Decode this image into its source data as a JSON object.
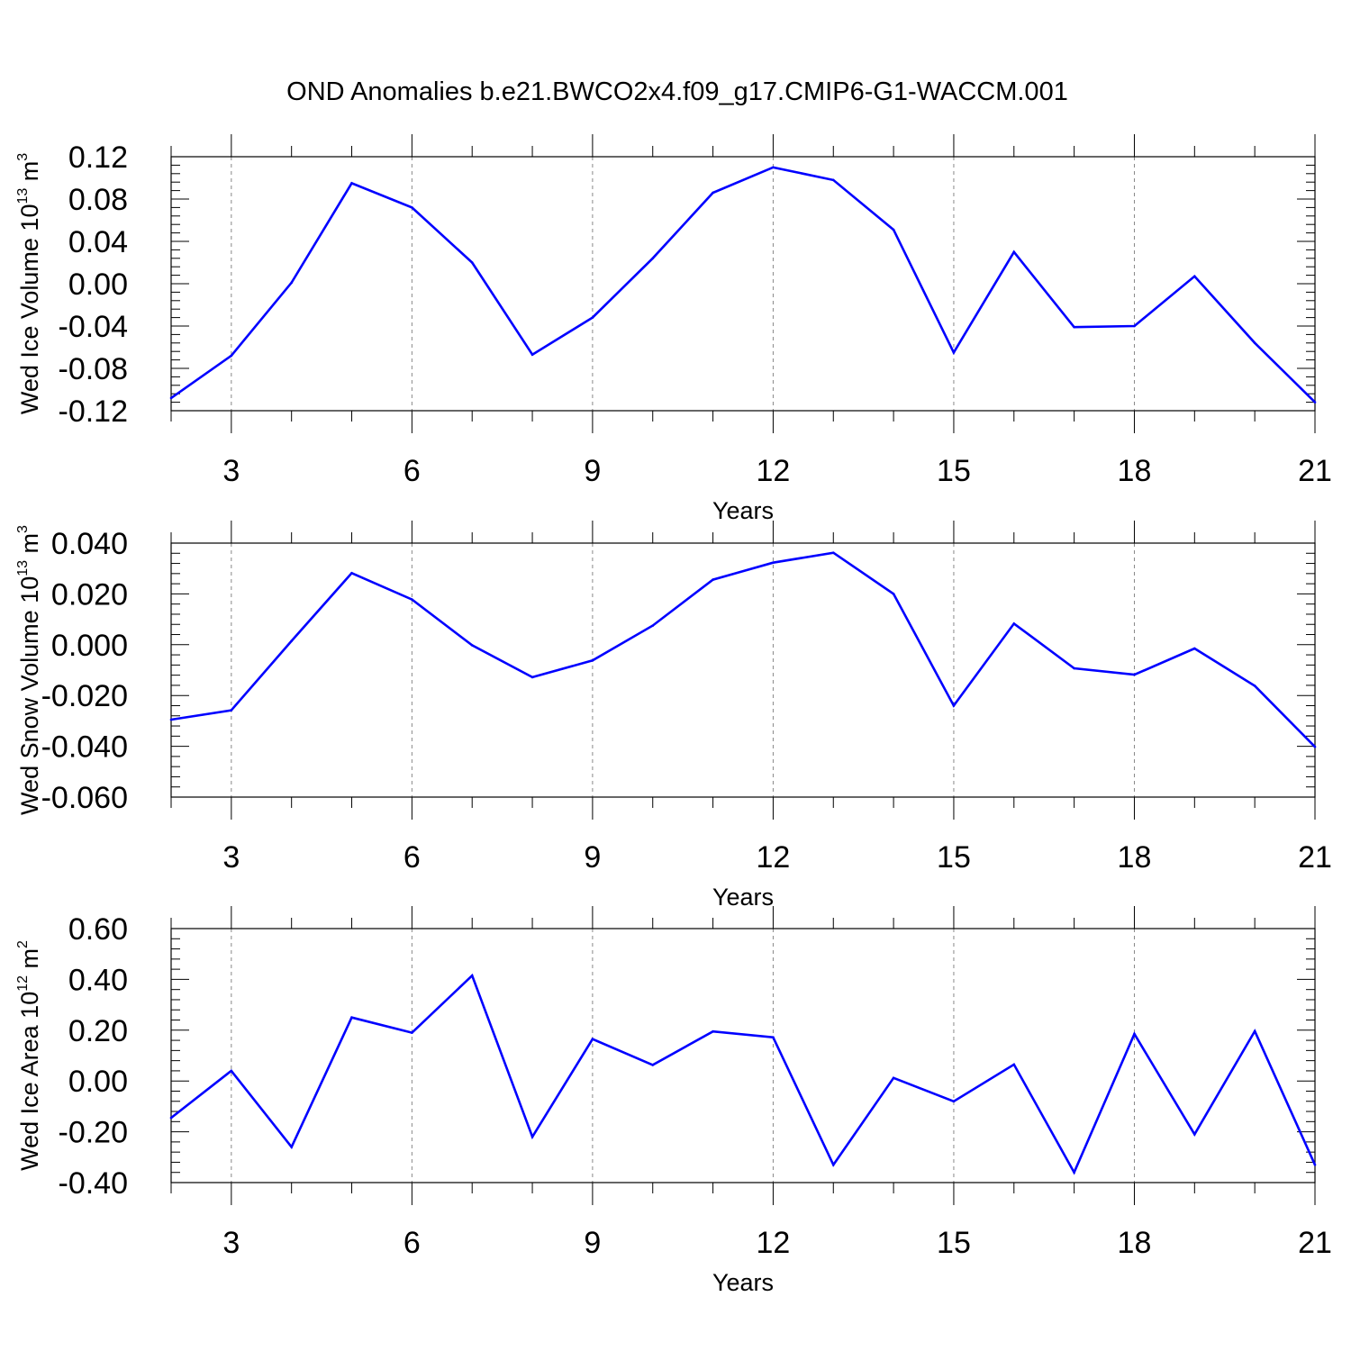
{
  "title": "OND Anomalies b.e21.BWCO2x4.f09_g17.CMIP6-G1-WACCM.001",
  "colors": {
    "line": "#0000ff",
    "axis": "#000000",
    "grid": "#888888"
  },
  "chart_data": [
    {
      "type": "line",
      "ylabel": {
        "text": "Wed Ice Volume 10",
        "exp": "13",
        "unit": " m",
        "unit_exp": "3"
      },
      "xlabel": "Years",
      "xlim": [
        2,
        21
      ],
      "ylim": [
        -0.12,
        0.12
      ],
      "xticks": [
        3,
        6,
        9,
        12,
        15,
        18,
        21
      ],
      "xtick_labels": [
        "3",
        "6",
        "9",
        "12",
        "15",
        "18",
        "21"
      ],
      "yticks": [
        -0.12,
        -0.08,
        -0.04,
        0.0,
        0.04,
        0.08,
        0.12
      ],
      "ytick_labels": [
        "-0.12",
        "-0.08",
        "-0.04",
        "0.00",
        "0.04",
        "0.08",
        "0.12"
      ],
      "grid": "x-dashed",
      "series": [
        {
          "x": [
            2,
            3,
            4,
            5,
            6,
            7,
            8,
            9,
            10,
            11,
            12,
            13,
            14,
            15,
            16,
            17,
            18,
            19,
            20,
            21
          ],
          "y": [
            -0.108,
            -0.068,
            0.001,
            0.095,
            0.072,
            0.02,
            -0.067,
            -0.032,
            0.024,
            0.086,
            0.11,
            0.098,
            0.051,
            -0.065,
            0.03,
            -0.041,
            -0.04,
            0.007,
            -0.056,
            -0.112
          ]
        }
      ]
    },
    {
      "type": "line",
      "ylabel": {
        "text": "Wed Snow Volume 10",
        "exp": "13",
        "unit": " m",
        "unit_exp": "3"
      },
      "xlabel": "Years",
      "xlim": [
        2,
        21
      ],
      "ylim": [
        -0.06,
        0.04
      ],
      "xticks": [
        3,
        6,
        9,
        12,
        15,
        18,
        21
      ],
      "xtick_labels": [
        "3",
        "6",
        "9",
        "12",
        "15",
        "18",
        "21"
      ],
      "yticks": [
        -0.06,
        -0.04,
        -0.02,
        0.0,
        0.02,
        0.04
      ],
      "ytick_labels": [
        "-0.060",
        "-0.040",
        "-0.020",
        "0.000",
        "0.020",
        "0.040"
      ],
      "grid": "x-dashed",
      "series": [
        {
          "x": [
            2,
            3,
            4,
            5,
            6,
            7,
            8,
            9,
            10,
            11,
            12,
            13,
            14,
            15,
            16,
            17,
            18,
            19,
            20,
            21
          ],
          "y": [
            -0.0295,
            -0.0258,
            0.0015,
            0.0282,
            0.0178,
            -0.0002,
            -0.0128,
            -0.0062,
            0.0075,
            0.0256,
            0.0323,
            0.0362,
            0.02,
            -0.024,
            0.0083,
            -0.0093,
            -0.0118,
            -0.0015,
            -0.0162,
            -0.0402
          ]
        }
      ]
    },
    {
      "type": "line",
      "ylabel": {
        "text": "Wed Ice Area 10",
        "exp": "12",
        "unit": " m",
        "unit_exp": "2"
      },
      "xlabel": "Years",
      "xlim": [
        2,
        21
      ],
      "ylim": [
        -0.4,
        0.6
      ],
      "xticks": [
        3,
        6,
        9,
        12,
        15,
        18,
        21
      ],
      "xtick_labels": [
        "3",
        "6",
        "9",
        "12",
        "15",
        "18",
        "21"
      ],
      "yticks": [
        -0.4,
        -0.2,
        0.0,
        0.2,
        0.4,
        0.6
      ],
      "ytick_labels": [
        "-0.40",
        "-0.20",
        "0.00",
        "0.20",
        "0.40",
        "0.60"
      ],
      "grid": "x-dashed",
      "series": [
        {
          "x": [
            2,
            3,
            4,
            5,
            6,
            7,
            8,
            9,
            10,
            11,
            12,
            13,
            14,
            15,
            16,
            17,
            18,
            19,
            20,
            21
          ],
          "y": [
            -0.145,
            0.04,
            -0.26,
            0.25,
            0.19,
            0.415,
            -0.22,
            0.165,
            0.063,
            0.195,
            0.172,
            -0.33,
            0.012,
            -0.08,
            0.065,
            -0.36,
            0.185,
            -0.21,
            0.196,
            -0.33
          ]
        }
      ]
    }
  ]
}
